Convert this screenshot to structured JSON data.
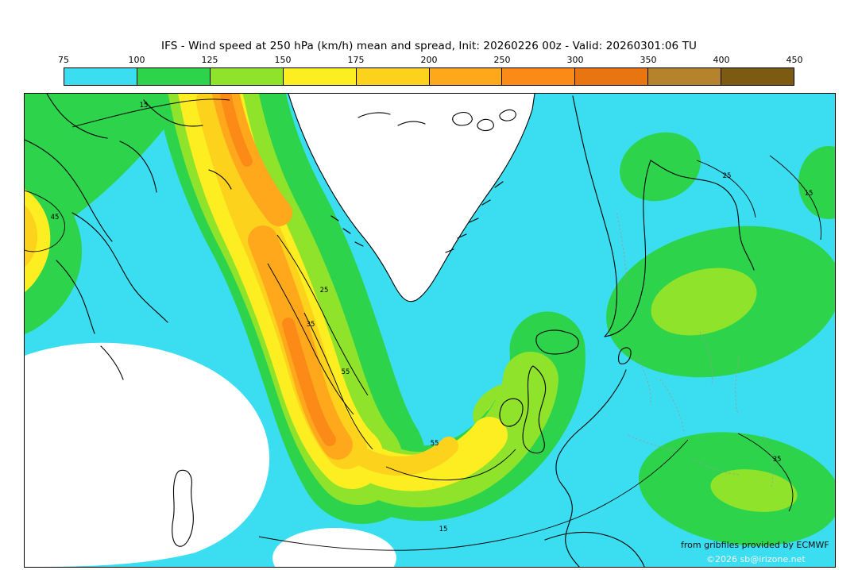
{
  "title": "IFS - Wind speed at 250 hPa (km/h) mean and spread, Init: 20260226 00z - Valid: 20260301:06 TU",
  "colorbar": {
    "ticks": [
      "75",
      "100",
      "125",
      "150",
      "175",
      "200",
      "250",
      "300",
      "350",
      "400",
      "450"
    ],
    "colors": [
      "#3adef0",
      "#2ed34c",
      "#8fe32a",
      "#fcee21",
      "#fcd21c",
      "#ffa81c",
      "#fb8a16",
      "#e8750f",
      "#b5832c",
      "#7d5a12"
    ]
  },
  "map": {
    "contour_labels": [
      "15",
      "45",
      "25",
      "35",
      "55",
      "55",
      "15",
      "35",
      "15",
      "25"
    ],
    "attribution_line1": "from gribfiles provided by ECMWF",
    "attribution_line2": "©2026 sb@irizone.net"
  },
  "chart_data": {
    "type": "heatmap",
    "title": "IFS - Wind speed at 250 hPa (km/h) mean and spread, Init: 20260226 00z - Valid: 20260301:06 TU",
    "model": "IFS",
    "variable": "Wind speed at 250 hPa (km/h), ensemble mean (color shading) and spread (black contours)",
    "init_time": "20260226 00z",
    "valid_time": "20260301:06 TU",
    "colorscale": {
      "unit": "km/h",
      "levels": [
        75,
        100,
        125,
        150,
        175,
        200,
        250,
        300,
        350,
        400,
        450
      ],
      "colors": [
        "#3adef0",
        "#2ed34c",
        "#8fe32a",
        "#fcee21",
        "#fcd21c",
        "#ffa81c",
        "#fb8a16",
        "#e8750f",
        "#b5832c",
        "#7d5a12"
      ]
    },
    "spread_contour_values_visible": [
      15,
      25,
      35,
      45,
      55
    ],
    "features": [
      "Main jet streak (orange core, roughly 200-300 km/h) arcs from the upper-left of the map southeastward across the central North Atlantic, hooks east near the bottom center, then trails northeast toward Ireland",
      "Secondary orange jet maximum crosses the top-left edge of the map",
      "Winds below 75 km/h (white) over the southwest quadrant and interior Greenland",
      "Green 100-150 km/h bands over Scandinavia/Baltic, southeastern Europe and the far left edge",
      "Background cyan shading (75-100 km/h) over most remaining ocean and Europe"
    ]
  }
}
